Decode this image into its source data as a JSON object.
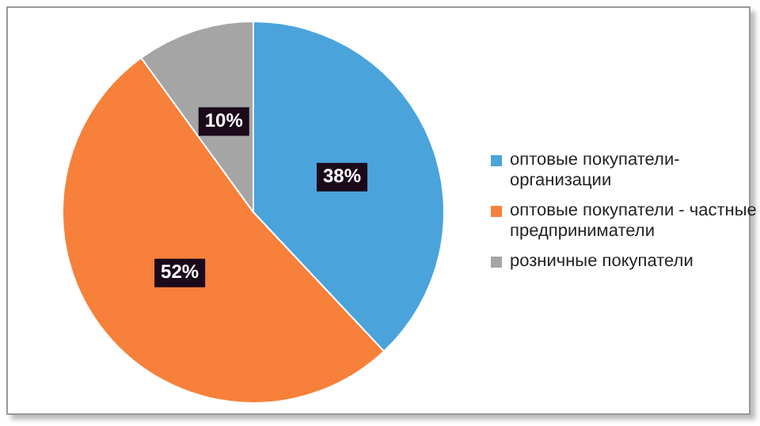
{
  "chart_data": {
    "type": "pie",
    "categories": [
      "оптовые покупатели-организации",
      "оптовые покупатели - частные предприниматели",
      "розничные покупатели"
    ],
    "values": [
      38,
      52,
      10
    ],
    "colors": [
      "#4aa3db",
      "#f7803a",
      "#a5a5a5"
    ],
    "value_labels": [
      "38%",
      "52%",
      "10%"
    ],
    "legend": "right"
  }
}
